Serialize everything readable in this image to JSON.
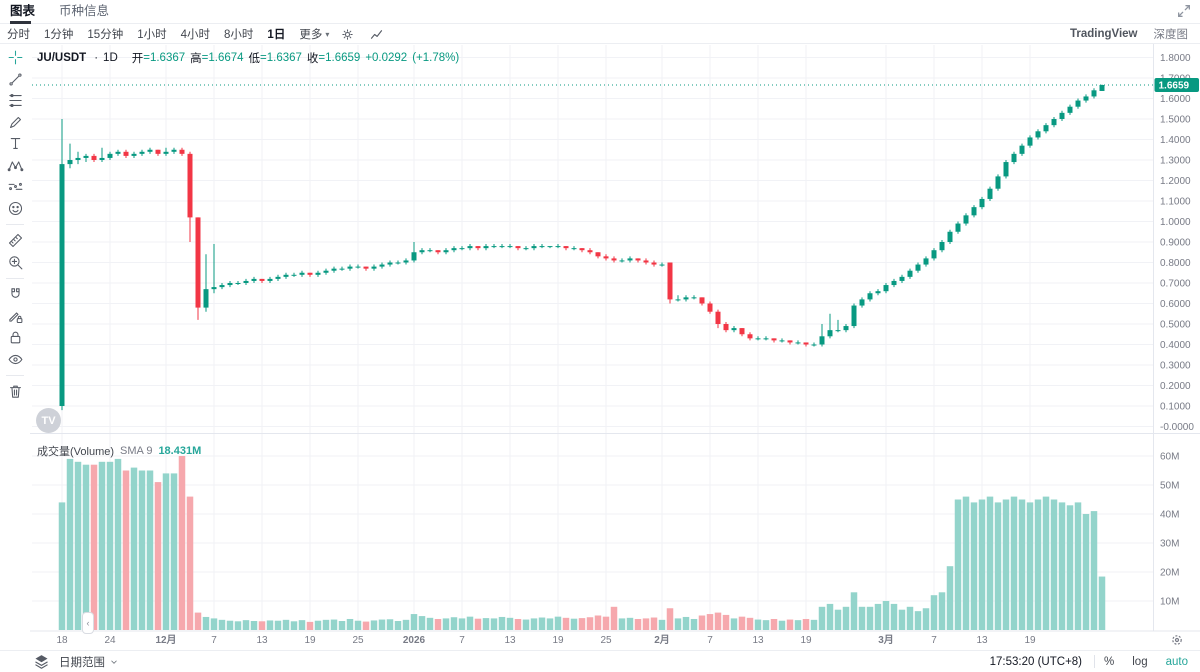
{
  "header": {
    "tabs": [
      {
        "label": "图表"
      },
      {
        "label": "币种信息"
      }
    ]
  },
  "toolbar": {
    "intervals": [
      "分时",
      "1分钟",
      "15分钟",
      "1小时",
      "4小时",
      "8小时",
      "1日"
    ],
    "active_interval": "1日",
    "more_label": "更多",
    "tradingview_label": "TradingView",
    "depth_label": "深度图"
  },
  "symbol_info": {
    "symbol": "JU/USDT",
    "dot": "·",
    "interval": "1D",
    "fields": [
      {
        "label": "开",
        "value": "=1.6367"
      },
      {
        "label": "高",
        "value": "=1.6674"
      },
      {
        "label": "低",
        "value": "=1.6367"
      },
      {
        "label": "收",
        "value": "=1.6659"
      }
    ],
    "change": "+0.0292",
    "change_pct": "(+1.78%)"
  },
  "volume_header": {
    "title": "成交量(Volume)",
    "sma_label": "SMA 9",
    "value": "18.431M"
  },
  "watermark": "TV",
  "bottom_bar": {
    "date_range_label": "日期范围",
    "time_text": "17:53:20 (UTC+8)",
    "percent_label": "%",
    "log_label": "log",
    "auto_label": "auto"
  },
  "sidebar_tools": [
    "crosshair",
    "trend-line",
    "fib-retracement",
    "brush",
    "text",
    "xabcd-pattern",
    "forecast",
    "emoji",
    "ruler",
    "zoom-in",
    "magnet",
    "drawing-lock",
    "lock-all",
    "hide-all",
    "remove-all"
  ],
  "colors": {
    "up": "#089981",
    "down": "#f23645",
    "volume_up": "#93d4cb",
    "volume_down": "#f6a8ad",
    "accent": "#26a69a",
    "grid": "#f1f2f6",
    "axis_text": "#787b86",
    "separator": "#e4e7ee",
    "badge_text": "#ffffff"
  },
  "chart_data": {
    "type": "candlestick",
    "symbol": "JU/USDT",
    "interval": "1D",
    "current_price": 1.6659,
    "current_price_label": "1.6659",
    "legend": {
      "open": 1.6367,
      "high": 1.6674,
      "low": 1.6367,
      "close": 1.6659,
      "change": 0.0292,
      "change_pct": 1.78,
      "volume": "18.431M",
      "volume_sma9": "18.431M"
    },
    "axis_ranges": {
      "price": [
        -0.0,
        1.8
      ],
      "volume_m": [
        0,
        65
      ]
    },
    "price_ticks": [
      {
        "v": 1.8,
        "label": "1.8000"
      },
      {
        "v": 1.7,
        "label": "1.7000"
      },
      {
        "v": 1.6,
        "label": "1.6000"
      },
      {
        "v": 1.5,
        "label": "1.5000"
      },
      {
        "v": 1.4,
        "label": "1.4000"
      },
      {
        "v": 1.3,
        "label": "1.3000"
      },
      {
        "v": 1.2,
        "label": "1.2000"
      },
      {
        "v": 1.1,
        "label": "1.1000"
      },
      {
        "v": 1.0,
        "label": "1.0000"
      },
      {
        "v": 0.9,
        "label": "0.9000"
      },
      {
        "v": 0.8,
        "label": "0.8000"
      },
      {
        "v": 0.7,
        "label": "0.7000"
      },
      {
        "v": 0.6,
        "label": "0.6000"
      },
      {
        "v": 0.5,
        "label": "0.5000"
      },
      {
        "v": 0.4,
        "label": "0.4000"
      },
      {
        "v": 0.3,
        "label": "0.3000"
      },
      {
        "v": 0.2,
        "label": "0.2000"
      },
      {
        "v": 0.1,
        "label": "0.1000"
      },
      {
        "v": 0,
        "label": "-0.0000"
      }
    ],
    "volume_ticks": [
      {
        "v": 60,
        "label": "60M"
      },
      {
        "v": 50,
        "label": "50M"
      },
      {
        "v": 40,
        "label": "40M"
      },
      {
        "v": 30,
        "label": "30M"
      },
      {
        "v": 20,
        "label": "20M"
      },
      {
        "v": 10,
        "label": "10M"
      }
    ],
    "time_labels": [
      {
        "i": 0,
        "label": "18"
      },
      {
        "i": 6,
        "label": "24"
      },
      {
        "i": 13,
        "label": "12月",
        "strong": true
      },
      {
        "i": 19,
        "label": "7"
      },
      {
        "i": 25,
        "label": "13"
      },
      {
        "i": 31,
        "label": "19"
      },
      {
        "i": 37,
        "label": "25"
      },
      {
        "i": 44,
        "label": "2026",
        "strong": true
      },
      {
        "i": 50,
        "label": "7"
      },
      {
        "i": 56,
        "label": "13"
      },
      {
        "i": 62,
        "label": "19"
      },
      {
        "i": 68,
        "label": "25"
      },
      {
        "i": 75,
        "label": "2月",
        "strong": true
      },
      {
        "i": 81,
        "label": "7"
      },
      {
        "i": 87,
        "label": "13"
      },
      {
        "i": 93,
        "label": "19"
      },
      {
        "i": 103,
        "label": "3月",
        "strong": true
      },
      {
        "i": 109,
        "label": "7"
      },
      {
        "i": 115,
        "label": "13"
      },
      {
        "i": 121,
        "label": "19"
      }
    ],
    "candles": [
      [
        0.1,
        1.5,
        0.08,
        1.28,
        44
      ],
      [
        1.28,
        1.38,
        1.26,
        1.3,
        59
      ],
      [
        1.3,
        1.34,
        1.28,
        1.31,
        58
      ],
      [
        1.31,
        1.33,
        1.29,
        1.32,
        57
      ],
      [
        1.32,
        1.33,
        1.29,
        1.3,
        57
      ],
      [
        1.3,
        1.36,
        1.29,
        1.31,
        58
      ],
      [
        1.31,
        1.34,
        1.3,
        1.33,
        58
      ],
      [
        1.33,
        1.35,
        1.32,
        1.34,
        59
      ],
      [
        1.34,
        1.35,
        1.31,
        1.32,
        55
      ],
      [
        1.32,
        1.34,
        1.31,
        1.33,
        56
      ],
      [
        1.33,
        1.35,
        1.32,
        1.34,
        55
      ],
      [
        1.34,
        1.36,
        1.33,
        1.35,
        55
      ],
      [
        1.35,
        1.35,
        1.32,
        1.33,
        51
      ],
      [
        1.33,
        1.36,
        1.32,
        1.34,
        54
      ],
      [
        1.34,
        1.36,
        1.33,
        1.35,
        54
      ],
      [
        1.35,
        1.36,
        1.32,
        1.33,
        60
      ],
      [
        1.33,
        1.34,
        0.9,
        1.02,
        46
      ],
      [
        1.02,
        1.02,
        0.52,
        0.58,
        6
      ],
      [
        0.58,
        0.84,
        0.56,
        0.67,
        4.5
      ],
      [
        0.67,
        0.89,
        0.65,
        0.68,
        4
      ],
      [
        0.68,
        0.7,
        0.67,
        0.69,
        3.5
      ],
      [
        0.69,
        0.71,
        0.68,
        0.7,
        3.2
      ],
      [
        0.7,
        0.71,
        0.69,
        0.7,
        3
      ],
      [
        0.7,
        0.72,
        0.69,
        0.71,
        3.4
      ],
      [
        0.71,
        0.73,
        0.7,
        0.72,
        3.1
      ],
      [
        0.72,
        0.72,
        0.7,
        0.71,
        3
      ],
      [
        0.71,
        0.73,
        0.7,
        0.72,
        3.3
      ],
      [
        0.72,
        0.74,
        0.71,
        0.73,
        3.2
      ],
      [
        0.73,
        0.75,
        0.72,
        0.74,
        3.5
      ],
      [
        0.74,
        0.75,
        0.73,
        0.74,
        3
      ],
      [
        0.74,
        0.76,
        0.73,
        0.75,
        3.4
      ],
      [
        0.75,
        0.75,
        0.73,
        0.74,
        2.8
      ],
      [
        0.74,
        0.76,
        0.73,
        0.75,
        3.2
      ],
      [
        0.75,
        0.77,
        0.74,
        0.76,
        3.5
      ],
      [
        0.76,
        0.78,
        0.75,
        0.77,
        3.6
      ],
      [
        0.77,
        0.78,
        0.76,
        0.77,
        3.1
      ],
      [
        0.77,
        0.79,
        0.76,
        0.78,
        3.8
      ],
      [
        0.78,
        0.79,
        0.77,
        0.78,
        3.2
      ],
      [
        0.78,
        0.78,
        0.76,
        0.77,
        2.9
      ],
      [
        0.77,
        0.79,
        0.76,
        0.78,
        3.3
      ],
      [
        0.78,
        0.8,
        0.77,
        0.79,
        3.6
      ],
      [
        0.79,
        0.81,
        0.78,
        0.8,
        3.7
      ],
      [
        0.8,
        0.81,
        0.79,
        0.8,
        3.1
      ],
      [
        0.8,
        0.82,
        0.79,
        0.81,
        3.5
      ],
      [
        0.81,
        0.9,
        0.8,
        0.85,
        5.5
      ],
      [
        0.85,
        0.87,
        0.84,
        0.86,
        4.8
      ],
      [
        0.86,
        0.87,
        0.85,
        0.86,
        4.2
      ],
      [
        0.86,
        0.86,
        0.84,
        0.85,
        3.8
      ],
      [
        0.85,
        0.87,
        0.84,
        0.86,
        4
      ],
      [
        0.86,
        0.88,
        0.85,
        0.87,
        4.4
      ],
      [
        0.87,
        0.88,
        0.86,
        0.87,
        4
      ],
      [
        0.87,
        0.89,
        0.86,
        0.88,
        4.6
      ],
      [
        0.88,
        0.88,
        0.86,
        0.87,
        3.9
      ],
      [
        0.87,
        0.89,
        0.86,
        0.88,
        4.1
      ],
      [
        0.88,
        0.89,
        0.87,
        0.88,
        4
      ],
      [
        0.88,
        0.89,
        0.87,
        0.88,
        4.5
      ],
      [
        0.88,
        0.89,
        0.87,
        0.88,
        4.2
      ],
      [
        0.88,
        0.88,
        0.86,
        0.87,
        3.8
      ],
      [
        0.87,
        0.88,
        0.86,
        0.87,
        3.6
      ],
      [
        0.87,
        0.89,
        0.86,
        0.88,
        4
      ],
      [
        0.88,
        0.89,
        0.87,
        0.88,
        4.3
      ],
      [
        0.88,
        0.88,
        0.87,
        0.88,
        4
      ],
      [
        0.88,
        0.89,
        0.87,
        0.88,
        4.6
      ],
      [
        0.88,
        0.88,
        0.86,
        0.87,
        4.2
      ],
      [
        0.87,
        0.88,
        0.86,
        0.87,
        3.9
      ],
      [
        0.87,
        0.87,
        0.85,
        0.86,
        4.1
      ],
      [
        0.86,
        0.87,
        0.84,
        0.85,
        4.4
      ],
      [
        0.85,
        0.85,
        0.82,
        0.83,
        5
      ],
      [
        0.83,
        0.84,
        0.81,
        0.82,
        4.6
      ],
      [
        0.82,
        0.83,
        0.8,
        0.81,
        8
      ],
      [
        0.81,
        0.82,
        0.8,
        0.81,
        4
      ],
      [
        0.81,
        0.83,
        0.8,
        0.82,
        4.2
      ],
      [
        0.82,
        0.82,
        0.8,
        0.81,
        3.8
      ],
      [
        0.81,
        0.82,
        0.79,
        0.8,
        4
      ],
      [
        0.8,
        0.81,
        0.78,
        0.79,
        4.3
      ],
      [
        0.79,
        0.8,
        0.78,
        0.79,
        3.5
      ],
      [
        0.8,
        0.8,
        0.6,
        0.62,
        7.5
      ],
      [
        0.62,
        0.64,
        0.61,
        0.62,
        4
      ],
      [
        0.62,
        0.64,
        0.61,
        0.63,
        4.5
      ],
      [
        0.63,
        0.64,
        0.62,
        0.63,
        3.8
      ],
      [
        0.63,
        0.63,
        0.59,
        0.6,
        5
      ],
      [
        0.6,
        0.61,
        0.55,
        0.56,
        5.5
      ],
      [
        0.56,
        0.57,
        0.48,
        0.5,
        6
      ],
      [
        0.5,
        0.51,
        0.46,
        0.47,
        5.2
      ],
      [
        0.47,
        0.49,
        0.46,
        0.48,
        4
      ],
      [
        0.48,
        0.48,
        0.44,
        0.45,
        4.6
      ],
      [
        0.45,
        0.46,
        0.42,
        0.43,
        4.2
      ],
      [
        0.43,
        0.44,
        0.42,
        0.43,
        3.6
      ],
      [
        0.43,
        0.44,
        0.42,
        0.43,
        3.4
      ],
      [
        0.43,
        0.43,
        0.41,
        0.42,
        3.8
      ],
      [
        0.42,
        0.43,
        0.41,
        0.42,
        3.2
      ],
      [
        0.42,
        0.42,
        0.4,
        0.41,
        3.6
      ],
      [
        0.41,
        0.42,
        0.4,
        0.41,
        3.4
      ],
      [
        0.41,
        0.41,
        0.39,
        0.4,
        3.8
      ],
      [
        0.4,
        0.41,
        0.39,
        0.4,
        3.5
      ],
      [
        0.4,
        0.5,
        0.39,
        0.44,
        8
      ],
      [
        0.44,
        0.55,
        0.43,
        0.47,
        9
      ],
      [
        0.47,
        0.52,
        0.46,
        0.47,
        7
      ],
      [
        0.47,
        0.5,
        0.46,
        0.49,
        8
      ],
      [
        0.49,
        0.6,
        0.48,
        0.59,
        13
      ],
      [
        0.59,
        0.63,
        0.58,
        0.62,
        8
      ],
      [
        0.62,
        0.66,
        0.61,
        0.65,
        8
      ],
      [
        0.65,
        0.67,
        0.64,
        0.66,
        9
      ],
      [
        0.66,
        0.7,
        0.65,
        0.69,
        10
      ],
      [
        0.69,
        0.72,
        0.68,
        0.71,
        9
      ],
      [
        0.71,
        0.74,
        0.7,
        0.73,
        7
      ],
      [
        0.73,
        0.77,
        0.72,
        0.76,
        8
      ],
      [
        0.76,
        0.8,
        0.75,
        0.79,
        6.5
      ],
      [
        0.79,
        0.83,
        0.78,
        0.82,
        7.5
      ],
      [
        0.82,
        0.87,
        0.81,
        0.86,
        12
      ],
      [
        0.86,
        0.91,
        0.85,
        0.9,
        13
      ],
      [
        0.9,
        0.96,
        0.89,
        0.95,
        22
      ],
      [
        0.95,
        1.0,
        0.94,
        0.99,
        45
      ],
      [
        0.99,
        1.04,
        0.98,
        1.03,
        46
      ],
      [
        1.03,
        1.08,
        1.02,
        1.07,
        44
      ],
      [
        1.07,
        1.12,
        1.06,
        1.11,
        45
      ],
      [
        1.11,
        1.17,
        1.1,
        1.16,
        46
      ],
      [
        1.16,
        1.23,
        1.15,
        1.22,
        44
      ],
      [
        1.22,
        1.3,
        1.21,
        1.29,
        45
      ],
      [
        1.29,
        1.34,
        1.28,
        1.33,
        46
      ],
      [
        1.33,
        1.38,
        1.32,
        1.37,
        45
      ],
      [
        1.37,
        1.42,
        1.36,
        1.41,
        44
      ],
      [
        1.41,
        1.45,
        1.4,
        1.44,
        45
      ],
      [
        1.44,
        1.48,
        1.43,
        1.47,
        46
      ],
      [
        1.47,
        1.51,
        1.46,
        1.5,
        45
      ],
      [
        1.5,
        1.54,
        1.49,
        1.53,
        44
      ],
      [
        1.53,
        1.57,
        1.52,
        1.56,
        43
      ],
      [
        1.56,
        1.6,
        1.55,
        1.59,
        44
      ],
      [
        1.59,
        1.62,
        1.58,
        1.61,
        40
      ],
      [
        1.61,
        1.65,
        1.6,
        1.64,
        41
      ],
      [
        1.6367,
        1.6674,
        1.6367,
        1.6659,
        18.43
      ]
    ]
  }
}
